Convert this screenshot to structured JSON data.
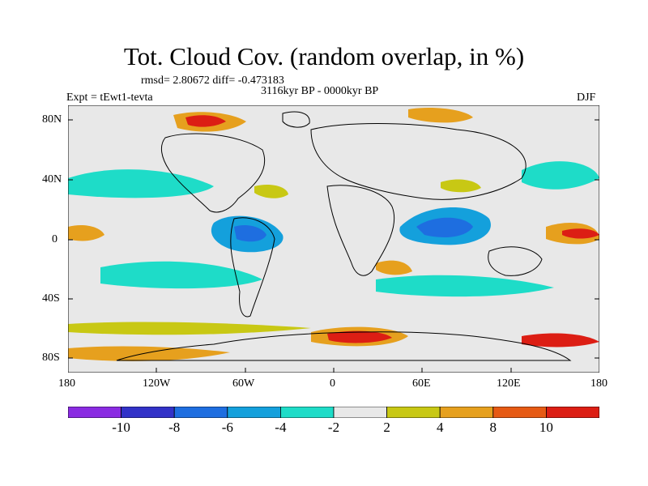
{
  "title": "Tot. Cloud Cov. (random overlap, in %)",
  "stats": "rmsd= 2.80672  diff= -0.473183",
  "period": "3116kyr BP - 0000kyr BP",
  "experiment": "Expt = tEwt1-tevta",
  "season": "DJF",
  "axes": {
    "lat_ticks": [
      "80N",
      "40N",
      "0",
      "40S",
      "80S"
    ],
    "lon_ticks": [
      "180",
      "120W",
      "60W",
      "0",
      "60E",
      "120E",
      "180"
    ]
  },
  "colorbar": {
    "labels": [
      "-10",
      "-8",
      "-6",
      "-4",
      "-2",
      "2",
      "4",
      "8",
      "10"
    ],
    "colors": [
      "#8a2be2",
      "#3232c8",
      "#1e6ee0",
      "#14a0dc",
      "#1edcc8",
      "#e8e8e8",
      "#c8c814",
      "#e6a01e",
      "#e65a14",
      "#dc1e14"
    ]
  }
}
